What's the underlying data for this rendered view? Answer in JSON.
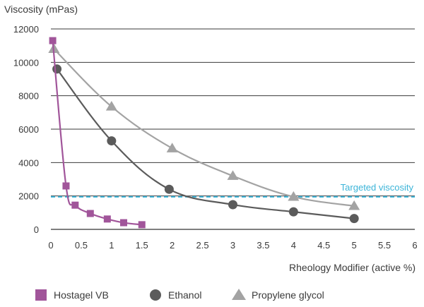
{
  "chart_data": {
    "type": "line",
    "title": "",
    "ylabel": "Viscosity (mPas)",
    "xlabel": "Rheology Modifier (active %)",
    "xlim": [
      0,
      6
    ],
    "ylim": [
      0,
      12000
    ],
    "x_ticks": [
      "0",
      "0.5",
      "1",
      "1.5",
      "2",
      "2.5",
      "3",
      "3.5",
      "4",
      "4.5",
      "5",
      "5.5",
      "6"
    ],
    "y_ticks": [
      "0",
      "2000",
      "4000",
      "6000",
      "8000",
      "10000",
      "12000"
    ],
    "grid": "horizontal",
    "legend_position": "bottom",
    "series": [
      {
        "name": "Hostagel VB",
        "marker": "square",
        "color": "#a1559a",
        "points": [
          {
            "x": 0.03,
            "y": 11300
          },
          {
            "x": 0.25,
            "y": 2600
          },
          {
            "x": 0.4,
            "y": 1450
          },
          {
            "x": 0.65,
            "y": 950
          },
          {
            "x": 0.93,
            "y": 620
          },
          {
            "x": 1.2,
            "y": 400
          },
          {
            "x": 1.5,
            "y": 280
          }
        ]
      },
      {
        "name": "Ethanol",
        "marker": "circle",
        "color": "#5b5b5b",
        "points": [
          {
            "x": 0.1,
            "y": 9600
          },
          {
            "x": 1.0,
            "y": 5300
          },
          {
            "x": 1.95,
            "y": 2400
          },
          {
            "x": 3.0,
            "y": 1480
          },
          {
            "x": 4.0,
            "y": 1050
          },
          {
            "x": 5.0,
            "y": 650
          }
        ]
      },
      {
        "name": "Propylene glycol",
        "marker": "triangle",
        "color": "#a3a3a3",
        "points": [
          {
            "x": 0.05,
            "y": 10800
          },
          {
            "x": 1.0,
            "y": 7350
          },
          {
            "x": 2.0,
            "y": 4850
          },
          {
            "x": 3.0,
            "y": 3200
          },
          {
            "x": 4.0,
            "y": 1950
          },
          {
            "x": 5.0,
            "y": 1400
          }
        ]
      }
    ],
    "reference_line": {
      "label": "Targeted viscosity",
      "y": 1950,
      "color": "#3bb4d8"
    }
  }
}
